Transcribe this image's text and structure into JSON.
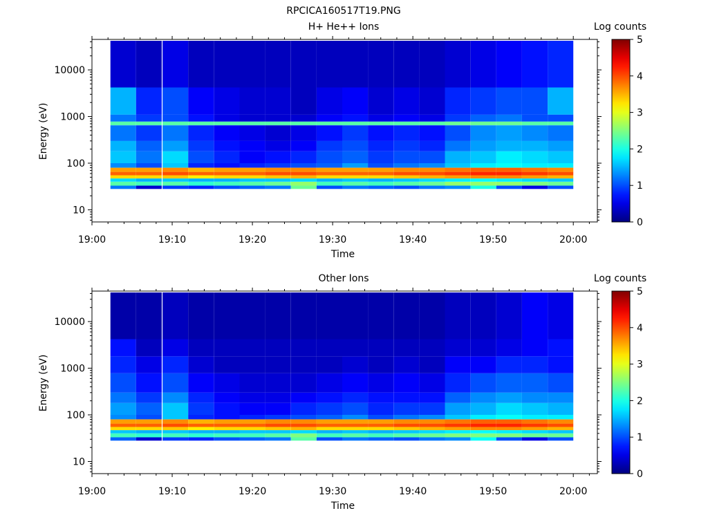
{
  "figure_title": "RPCICA160517T19.PNG",
  "chart_data": [
    {
      "type": "heatmap",
      "title": "H+ He++ Ions",
      "xlabel": "Time",
      "ylabel": "Energy (eV)",
      "x_tick_labels": [
        "19:00",
        "19:10",
        "19:20",
        "19:30",
        "19:40",
        "19:50",
        "20:00"
      ],
      "x_range": [
        "19:00",
        "20:03"
      ],
      "y_scale": "log",
      "y_range": [
        5.5,
        45000
      ],
      "y_tick_labels": [
        "10",
        "100",
        "1000",
        "10000"
      ],
      "colorbar": {
        "label": "Log counts",
        "range": [
          0,
          5
        ],
        "tick_labels": [
          "0",
          "1",
          "2",
          "3",
          "4",
          "5"
        ],
        "colormap": "jet"
      },
      "time_bins_start_min": [
        2.3,
        5.5,
        8.8,
        12,
        15.2,
        18.4,
        21.6,
        24.8,
        28,
        31.2,
        34.4,
        37.6,
        40.8,
        44,
        47.2,
        50.4,
        53.6,
        56.8
      ],
      "bin_width_min": 3.2,
      "energy_bands": [
        {
          "e_lo": 28,
          "e_hi": 33,
          "log_counts": [
            1.2,
            0.4,
            0.9,
            0.8,
            1.0,
            1.1,
            1.2,
            2.4,
            1.0,
            1.2,
            1.1,
            1.0,
            1.2,
            1.3,
            2.0,
            1.0,
            0.5,
            1.0
          ]
        },
        {
          "e_lo": 33,
          "e_hi": 40,
          "log_counts": [
            2.3,
            2.2,
            2.3,
            2.1,
            2.2,
            2.3,
            2.4,
            2.6,
            2.2,
            2.3,
            2.2,
            2.3,
            2.4,
            2.6,
            2.6,
            2.6,
            2.5,
            2.4
          ]
        },
        {
          "e_lo": 40,
          "e_hi": 47,
          "log_counts": [
            1.7,
            1.5,
            1.6,
            1.5,
            1.5,
            1.6,
            1.6,
            1.7,
            1.5,
            1.6,
            1.5,
            1.6,
            1.7,
            1.8,
            1.9,
            1.8,
            1.7,
            1.6
          ]
        },
        {
          "e_lo": 47,
          "e_hi": 55,
          "log_counts": [
            3.3,
            3.3,
            3.4,
            3.2,
            3.3,
            3.3,
            3.4,
            3.5,
            3.3,
            3.3,
            3.3,
            3.4,
            3.5,
            3.6,
            3.7,
            3.7,
            3.6,
            3.5
          ]
        },
        {
          "e_lo": 55,
          "e_hi": 65,
          "log_counts": [
            3.9,
            3.9,
            4.0,
            3.9,
            3.9,
            3.9,
            4.0,
            4.0,
            3.9,
            3.9,
            3.9,
            4.0,
            4.0,
            4.1,
            4.2,
            4.2,
            4.1,
            4.0
          ]
        },
        {
          "e_lo": 65,
          "e_hi": 80,
          "log_counts": [
            3.6,
            3.6,
            3.7,
            3.5,
            3.6,
            3.6,
            3.7,
            3.7,
            3.6,
            3.6,
            3.6,
            3.7,
            3.7,
            3.8,
            3.9,
            3.9,
            3.8,
            3.7
          ]
        },
        {
          "e_lo": 80,
          "e_hi": 100,
          "log_counts": [
            1.3,
            1.0,
            1.6,
            0.8,
            0.7,
            0.8,
            0.9,
            1.0,
            1.1,
            1.4,
            1.0,
            1.2,
            1.3,
            1.6,
            1.8,
            1.9,
            1.8,
            1.8
          ]
        },
        {
          "e_lo": 100,
          "e_hi": 180,
          "log_counts": [
            1.6,
            1.2,
            1.7,
            1.0,
            0.8,
            0.6,
            0.7,
            0.8,
            1.0,
            1.1,
            0.9,
            1.0,
            1.0,
            1.5,
            1.6,
            1.8,
            1.7,
            1.6
          ]
        },
        {
          "e_lo": 180,
          "e_hi": 300,
          "log_counts": [
            1.5,
            1.1,
            1.4,
            0.9,
            0.7,
            0.6,
            0.5,
            0.6,
            0.9,
            1.0,
            0.8,
            0.9,
            0.8,
            1.2,
            1.4,
            1.5,
            1.5,
            1.4
          ]
        },
        {
          "e_lo": 300,
          "e_hi": 650,
          "log_counts": [
            1.2,
            0.9,
            1.2,
            0.8,
            0.6,
            0.5,
            0.4,
            0.5,
            0.7,
            0.9,
            0.7,
            0.8,
            0.7,
            1.0,
            1.3,
            1.4,
            1.3,
            1.2
          ]
        },
        {
          "e_lo": 650,
          "e_hi": 780,
          "log_counts": [
            2.3,
            2.3,
            2.3,
            2.3,
            2.3,
            2.3,
            2.3,
            2.3,
            2.3,
            2.3,
            2.3,
            2.3,
            2.3,
            2.4,
            2.4,
            2.4,
            2.3,
            2.3
          ]
        },
        {
          "e_lo": 780,
          "e_hi": 1100,
          "log_counts": [
            1.2,
            0.9,
            1.0,
            0.7,
            0.5,
            0.4,
            0.4,
            0.4,
            0.6,
            0.7,
            0.5,
            0.6,
            0.5,
            0.9,
            1.1,
            1.2,
            1.0,
            1.0
          ]
        },
        {
          "e_lo": 1100,
          "e_hi": 4200,
          "log_counts": [
            1.5,
            0.8,
            1.0,
            0.6,
            0.5,
            0.4,
            0.4,
            0.3,
            0.5,
            0.6,
            0.4,
            0.5,
            0.4,
            0.8,
            0.9,
            1.0,
            1.0,
            1.5
          ]
        },
        {
          "e_lo": 4200,
          "e_hi": 42000,
          "log_counts": [
            0.4,
            0.3,
            0.5,
            0.3,
            0.3,
            0.3,
            0.3,
            0.3,
            0.3,
            0.3,
            0.3,
            0.3,
            0.3,
            0.4,
            0.5,
            0.6,
            0.7,
            0.8
          ]
        }
      ]
    },
    {
      "type": "heatmap",
      "title": "Other Ions",
      "xlabel": "Time",
      "ylabel": "Energy (eV)",
      "x_tick_labels": [
        "19:00",
        "19:10",
        "19:20",
        "19:30",
        "19:40",
        "19:50",
        "20:00"
      ],
      "x_range": [
        "19:00",
        "20:03"
      ],
      "y_scale": "log",
      "y_range": [
        5.5,
        45000
      ],
      "y_tick_labels": [
        "10",
        "100",
        "1000",
        "10000"
      ],
      "colorbar": {
        "label": "Log counts",
        "range": [
          0,
          5
        ],
        "tick_labels": [
          "0",
          "1",
          "2",
          "3",
          "4",
          "5"
        ],
        "colormap": "jet"
      },
      "time_bins_start_min": [
        2.3,
        5.5,
        8.8,
        12,
        15.2,
        18.4,
        21.6,
        24.8,
        28,
        31.2,
        34.4,
        37.6,
        40.8,
        44,
        47.2,
        50.4,
        53.6,
        56.8
      ],
      "bin_width_min": 3.2,
      "energy_bands": [
        {
          "e_lo": 28,
          "e_hi": 33,
          "log_counts": [
            1.1,
            0.4,
            0.9,
            0.8,
            1.0,
            1.1,
            1.2,
            2.3,
            1.0,
            1.2,
            1.1,
            1.0,
            1.2,
            1.3,
            1.9,
            1.0,
            0.5,
            1.0
          ]
        },
        {
          "e_lo": 33,
          "e_hi": 40,
          "log_counts": [
            2.2,
            2.1,
            2.2,
            2.1,
            2.2,
            2.2,
            2.3,
            2.5,
            2.2,
            2.3,
            2.2,
            2.3,
            2.4,
            2.5,
            2.5,
            2.5,
            2.4,
            2.4
          ]
        },
        {
          "e_lo": 40,
          "e_hi": 47,
          "log_counts": [
            1.6,
            1.5,
            1.6,
            1.5,
            1.5,
            1.6,
            1.6,
            1.7,
            1.5,
            1.6,
            1.5,
            1.6,
            1.7,
            1.8,
            1.9,
            1.8,
            1.7,
            1.6
          ]
        },
        {
          "e_lo": 47,
          "e_hi": 55,
          "log_counts": [
            3.3,
            3.3,
            3.4,
            3.2,
            3.3,
            3.3,
            3.4,
            3.5,
            3.3,
            3.3,
            3.3,
            3.4,
            3.5,
            3.6,
            3.7,
            3.7,
            3.6,
            3.5
          ]
        },
        {
          "e_lo": 55,
          "e_hi": 65,
          "log_counts": [
            3.9,
            3.9,
            4.0,
            3.9,
            3.9,
            3.9,
            4.0,
            4.0,
            3.9,
            3.9,
            3.9,
            4.0,
            4.0,
            4.1,
            4.2,
            4.2,
            4.1,
            4.0
          ]
        },
        {
          "e_lo": 65,
          "e_hi": 80,
          "log_counts": [
            3.6,
            3.6,
            3.7,
            3.5,
            3.6,
            3.6,
            3.7,
            3.7,
            3.6,
            3.6,
            3.6,
            3.7,
            3.7,
            3.8,
            3.9,
            3.9,
            3.8,
            3.7
          ]
        },
        {
          "e_lo": 80,
          "e_hi": 100,
          "log_counts": [
            1.3,
            1.0,
            1.6,
            0.8,
            0.7,
            0.8,
            0.9,
            1.0,
            1.1,
            1.3,
            1.0,
            1.2,
            1.3,
            1.6,
            1.8,
            1.9,
            1.8,
            1.8
          ]
        },
        {
          "e_lo": 100,
          "e_hi": 180,
          "log_counts": [
            1.4,
            1.1,
            1.6,
            0.9,
            0.7,
            0.6,
            0.6,
            0.8,
            0.9,
            1.0,
            0.8,
            0.9,
            0.9,
            1.4,
            1.5,
            1.7,
            1.6,
            1.5
          ]
        },
        {
          "e_lo": 180,
          "e_hi": 300,
          "log_counts": [
            1.2,
            0.9,
            1.3,
            0.8,
            0.6,
            0.5,
            0.5,
            0.6,
            0.7,
            0.8,
            0.7,
            0.7,
            0.7,
            1.1,
            1.3,
            1.4,
            1.3,
            1.3
          ]
        },
        {
          "e_lo": 300,
          "e_hi": 780,
          "log_counts": [
            1.0,
            0.7,
            1.0,
            0.6,
            0.5,
            0.4,
            0.4,
            0.4,
            0.5,
            0.6,
            0.5,
            0.6,
            0.5,
            0.8,
            1.0,
            1.1,
            1.1,
            1.0
          ]
        },
        {
          "e_lo": 780,
          "e_hi": 1800,
          "log_counts": [
            0.8,
            0.5,
            0.8,
            0.4,
            0.3,
            0.3,
            0.3,
            0.3,
            0.3,
            0.4,
            0.3,
            0.4,
            0.3,
            0.6,
            0.6,
            0.8,
            0.8,
            0.7
          ]
        },
        {
          "e_lo": 1800,
          "e_hi": 4200,
          "log_counts": [
            0.7,
            0.3,
            0.5,
            0.3,
            0.3,
            0.3,
            0.3,
            0.3,
            0.3,
            0.3,
            0.3,
            0.3,
            0.3,
            0.4,
            0.4,
            0.5,
            0.6,
            0.7
          ]
        },
        {
          "e_lo": 4200,
          "e_hi": 42000,
          "log_counts": [
            0.2,
            0.2,
            0.3,
            0.2,
            0.2,
            0.2,
            0.2,
            0.2,
            0.2,
            0.2,
            0.2,
            0.2,
            0.2,
            0.3,
            0.3,
            0.4,
            0.6,
            0.5
          ]
        }
      ]
    }
  ]
}
